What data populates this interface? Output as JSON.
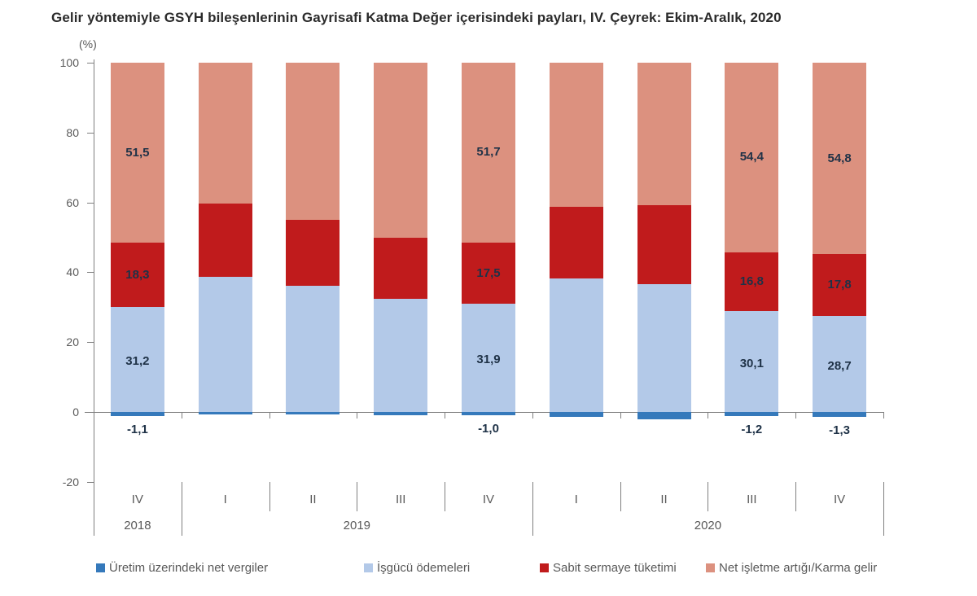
{
  "title": "Gelir yöntemiyle GSYH bileşenlerinin Gayrisafi Katma Değer içerisindeki payları, IV. Çeyrek: Ekim-Aralık, 2020",
  "y_axis": {
    "unit_label": "(%)",
    "ticks": [
      {
        "label": "100",
        "value": 100
      },
      {
        "label": "80",
        "value": 80
      },
      {
        "label": "60",
        "value": 60
      },
      {
        "label": "40",
        "value": 40
      },
      {
        "label": "20",
        "value": 20
      },
      {
        "label": "0",
        "value": 0
      },
      {
        "label": "-20",
        "value": -20
      }
    ]
  },
  "colors": {
    "net_taxes": "#3579bb",
    "labor_payments": "#b3c9e8",
    "fixed_capital": "#c01b1c",
    "operating_surplus": "#dc917f",
    "axis": "#7f7f7f",
    "tick_text": "#595959",
    "data_label_text": "#1f3247",
    "title_text": "#2b2b2b"
  },
  "chart_data": {
    "type": "bar",
    "stacked": true,
    "title": "Gelir yöntemiyle GSYH bileşenlerinin Gayrisafi Katma Değer içerisindeki payları, IV. Çeyrek: Ekim-Aralık, 2020",
    "ylabel": "(%)",
    "ylim": [
      -20,
      100
    ],
    "grid": false,
    "legend_position": "bottom",
    "categories": [
      {
        "quarter": "IV",
        "year": "2018"
      },
      {
        "quarter": "I",
        "year": "2019"
      },
      {
        "quarter": "II",
        "year": "2019"
      },
      {
        "quarter": "III",
        "year": "2019"
      },
      {
        "quarter": "IV",
        "year": "2019"
      },
      {
        "quarter": "I",
        "year": "2020"
      },
      {
        "quarter": "II",
        "year": "2020"
      },
      {
        "quarter": "III",
        "year": "2020"
      },
      {
        "quarter": "IV",
        "year": "2020"
      }
    ],
    "year_groups": [
      {
        "label": "2018",
        "from": 0,
        "to": 0
      },
      {
        "label": "2019",
        "from": 1,
        "to": 4
      },
      {
        "label": "2020",
        "from": 5,
        "to": 8
      }
    ],
    "series": [
      {
        "key": "net_taxes",
        "name": "Üretim üzerindeki net vergiler",
        "color": "#3579bb",
        "values": [
          -1.1,
          -0.7,
          -0.8,
          -0.9,
          -1.0,
          -1.3,
          -2.1,
          -1.2,
          -1.3
        ]
      },
      {
        "key": "labor_payments",
        "name": "İşgücü ödemeleri",
        "color": "#b3c9e8",
        "values": [
          31.2,
          39.3,
          37.0,
          33.4,
          31.9,
          39.6,
          38.7,
          30.1,
          28.7
        ]
      },
      {
        "key": "fixed_capital",
        "name": "Sabit sermaye tüketimi",
        "color": "#c01b1c",
        "values": [
          18.3,
          21.0,
          18.9,
          17.3,
          17.5,
          20.5,
          22.5,
          16.8,
          17.8
        ]
      },
      {
        "key": "operating_surplus",
        "name": "Net işletme artığı/Karma gelir",
        "color": "#dc917f",
        "values": [
          51.5,
          40.4,
          44.9,
          50.2,
          51.7,
          41.2,
          40.9,
          54.4,
          54.8
        ]
      }
    ],
    "bar_labels": [
      {
        "net": "-1,1",
        "labor": "31,2",
        "capital": "18,3",
        "surplus": "51,5"
      },
      null,
      null,
      null,
      {
        "net": "-1,0",
        "labor": "31,9",
        "capital": "17,5",
        "surplus": "51,7"
      },
      null,
      null,
      {
        "net": "-1,2",
        "labor": "30,1",
        "capital": "16,8",
        "surplus": "54,4"
      },
      {
        "net": "-1,3",
        "labor": "28,7",
        "capital": "17,8",
        "surplus": "54,8"
      }
    ],
    "note": "Unlabeled bar values estimated from bar heights against axis gridlines"
  }
}
